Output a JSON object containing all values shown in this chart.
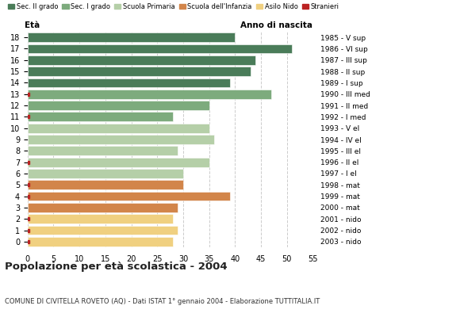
{
  "ages": [
    18,
    17,
    16,
    15,
    14,
    13,
    12,
    11,
    10,
    9,
    8,
    7,
    6,
    5,
    4,
    3,
    2,
    1,
    0
  ],
  "years": [
    "1985 - V sup",
    "1986 - VI sup",
    "1987 - III sup",
    "1988 - II sup",
    "1989 - I sup",
    "1990 - III med",
    "1991 - II med",
    "1992 - I med",
    "1993 - V el",
    "1994 - IV el",
    "1995 - III el",
    "1996 - II el",
    "1997 - I el",
    "1998 - mat",
    "1999 - mat",
    "2000 - mat",
    "2001 - nido",
    "2002 - nido",
    "2003 - nido"
  ],
  "values": [
    40,
    51,
    44,
    43,
    39,
    47,
    35,
    28,
    35,
    36,
    29,
    35,
    30,
    30,
    39,
    29,
    28,
    29,
    28
  ],
  "categories": [
    "Sec. II grado",
    "Sec. II grado",
    "Sec. II grado",
    "Sec. II grado",
    "Sec. II grado",
    "Sec. I grado",
    "Sec. I grado",
    "Sec. I grado",
    "Scuola Primaria",
    "Scuola Primaria",
    "Scuola Primaria",
    "Scuola Primaria",
    "Scuola Primaria",
    "Scuola dell'Infanzia",
    "Scuola dell'Infanzia",
    "Scuola dell'Infanzia",
    "Asilo Nido",
    "Asilo Nido",
    "Asilo Nido"
  ],
  "stranieri_ages": [
    13,
    11,
    7,
    5,
    4,
    2,
    1,
    0
  ],
  "colors": {
    "Sec. II grado": "#4a7c59",
    "Sec. I grado": "#7dab7d",
    "Scuola Primaria": "#b5cfa8",
    "Scuola dell'Infanzia": "#d2854a",
    "Asilo Nido": "#f0d080",
    "Stranieri": "#bb2222"
  },
  "title": "Popolazione per età scolastica - 2004",
  "subtitle": "COMUNE DI CIVITELLA ROVETO (AQ) - Dati ISTAT 1° gennaio 2004 - Elaborazione TUTTITALIA.IT",
  "xlabel_left": "Età",
  "xlabel_right": "Anno di nascita",
  "xlim": [
    0,
    55
  ],
  "xticks": [
    0,
    5,
    10,
    15,
    20,
    25,
    30,
    35,
    40,
    45,
    50,
    55
  ],
  "background_color": "#ffffff",
  "grid_color": "#cccccc"
}
